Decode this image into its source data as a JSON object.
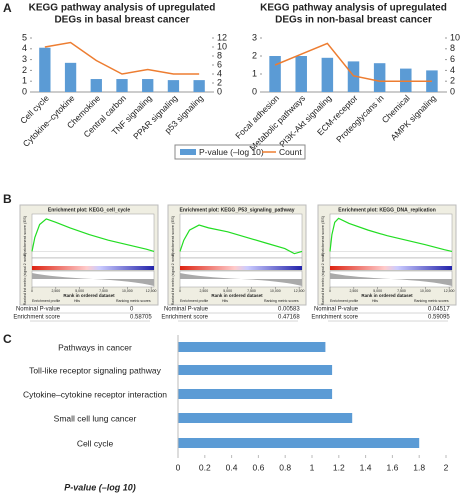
{
  "panel_labels": [
    "A",
    "B",
    "C"
  ],
  "chart_data": [
    {
      "type": "combo",
      "title": [
        "KEGG pathway analysis of upregulated",
        "DEGs in basal breast cancer"
      ],
      "categories": [
        "Cell cycle",
        "Cytokine–cytokine",
        "Chemokine",
        "Central carbon",
        "TNF signaling",
        "PPAR signaling",
        "p53 signaling"
      ],
      "series": [
        {
          "name": "P-value (–log 10)",
          "color": "#5b9bd5",
          "values": [
            4.1,
            2.7,
            1.2,
            1.2,
            1.2,
            1.1,
            1.1
          ]
        },
        {
          "name": "Count",
          "color": "#ed7d31",
          "axis": "y2",
          "values": [
            10,
            11,
            7,
            4,
            5,
            4,
            4
          ]
        }
      ],
      "ylim": [
        0,
        5
      ],
      "yticks": [
        0,
        1,
        2,
        3,
        4,
        5
      ],
      "y2lim": [
        0,
        12
      ],
      "y2ticks": [
        0,
        2,
        4,
        6,
        8,
        10,
        12
      ]
    },
    {
      "type": "combo",
      "title": [
        "KEGG pathway analysis of upregulated",
        "DEGs in non-basal breast cancer"
      ],
      "categories": [
        "Focal adhesion",
        "Metabolic pathways",
        "PI3K-Akt signaling",
        "ECM-receptor",
        "Proteoglycans in",
        "Chemical",
        "AMPK signaling"
      ],
      "series": [
        {
          "color": "#5b9bd5",
          "values": [
            2.0,
            2.0,
            1.9,
            1.7,
            1.6,
            1.3,
            1.2
          ]
        },
        {
          "color": "#ed7d31",
          "axis": "y2",
          "values": [
            5,
            7,
            9,
            3,
            2,
            2,
            2
          ]
        }
      ],
      "ylim": [
        0,
        3
      ],
      "yticks": [
        0,
        1,
        2,
        3
      ],
      "y2lim": [
        0,
        10
      ],
      "y2ticks": [
        0,
        2,
        4,
        6,
        8,
        10
      ]
    },
    {
      "type": "gsea",
      "title": "Enrichment plot: KEGG_cell_cycle",
      "color": "#22dd22",
      "x": [
        0,
        300,
        800,
        1500,
        2500,
        4000,
        6000,
        8000,
        10000,
        12000,
        12800
      ],
      "values": [
        0,
        0.25,
        0.48,
        0.58,
        0.52,
        0.42,
        0.3,
        0.2,
        0.12,
        0.04,
        0
      ],
      "xlim": [
        0,
        12800
      ],
      "ylim": [
        -0.1,
        0.65
      ],
      "xticks": [
        0,
        {
          "value": 2500,
          "label": "2,500"
        },
        {
          "value": 5000,
          "label": "5,000"
        },
        {
          "value": 7500,
          "label": "7,500"
        },
        {
          "value": 10000,
          "label": "10,000"
        },
        {
          "value": 12500,
          "label": "12,500"
        }
      ],
      "stats": [
        {
          "label": "Nominal P-value",
          "value": 0
        },
        {
          "label": "Enrichment score",
          "value": 0.58705
        }
      ]
    },
    {
      "type": "gsea",
      "title": "Enrichment plot: KEGG_P53_signaling_pathway",
      "color": "#22dd22",
      "x": [
        0,
        400,
        1000,
        2000,
        3000,
        5000,
        7000,
        9000,
        11000,
        12000,
        12800
      ],
      "values": [
        0,
        0.2,
        0.38,
        0.47,
        0.42,
        0.35,
        0.25,
        0.15,
        0.05,
        -0.04,
        0
      ],
      "xlim": [
        0,
        12800
      ],
      "ylim": [
        -0.1,
        0.65
      ],
      "xticks": [
        0,
        {
          "value": 2500,
          "label": "2,500"
        },
        {
          "value": 5000,
          "label": "5,000"
        },
        {
          "value": 7500,
          "label": "7,500"
        },
        {
          "value": 10000,
          "label": "10,000"
        },
        {
          "value": 12500,
          "label": "12,500"
        }
      ],
      "stats": [
        {
          "label": "Nominal P-value",
          "value": 0.00583
        },
        {
          "label": "Enrichment score",
          "value": 0.47168
        }
      ]
    },
    {
      "type": "gsea",
      "title": "Enrichment plot: KEGG_DNA_replication",
      "color": "#22dd22",
      "x": [
        0,
        200,
        500,
        900,
        2000,
        4000,
        6000,
        8000,
        10000,
        12000,
        12800
      ],
      "values": [
        0,
        0.3,
        0.52,
        0.59,
        0.5,
        0.38,
        0.28,
        0.2,
        0.12,
        0.03,
        0
      ],
      "xlim": [
        0,
        12800
      ],
      "ylim": [
        -0.1,
        0.65
      ],
      "xticks": [
        0,
        {
          "value": 2500,
          "label": "2,500"
        },
        {
          "value": 5000,
          "label": "5,000"
        },
        {
          "value": 7500,
          "label": "7,500"
        },
        {
          "value": 10000,
          "label": "10,000"
        },
        {
          "value": 12500,
          "label": "12,500"
        }
      ],
      "stats": [
        {
          "label": "Nominal P-value",
          "value": 0.04517
        },
        {
          "label": "Enrichment score",
          "value": 0.59095
        }
      ]
    },
    {
      "type": "hbar",
      "color": "#5b9bd5",
      "categories": [
        "Pathways in cancer",
        "Toll-like receptor signaling pathway",
        "Cytokine–cytokine receptor interaction",
        "Small cell lung cancer",
        "Cell cycle"
      ],
      "values": [
        1.1,
        1.15,
        1.15,
        1.3,
        1.8
      ],
      "xlim": [
        0,
        2
      ],
      "xticks": [
        0,
        0.2,
        0.4,
        0.6,
        0.8,
        1,
        1.2,
        1.4,
        1.6,
        1.8,
        2
      ],
      "xlabel": "P-value (–log 10)"
    }
  ],
  "gsea_labels": {
    "es": "Enrichment score (ES)",
    "metric": "Ranked list metric (signal 2 noise)",
    "rank": "Rank in ordered dataset",
    "legend": [
      "Enrichment profile",
      "Hits",
      "Ranking metric scores"
    ]
  }
}
